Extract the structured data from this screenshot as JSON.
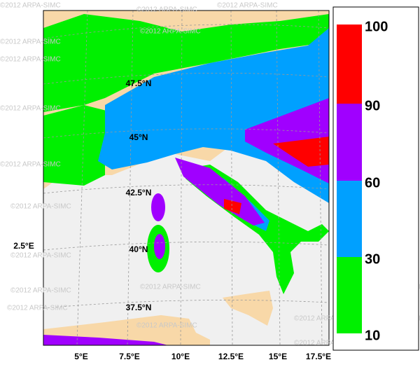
{
  "map": {
    "watermark": "©2012 ARPA-SIMC",
    "lat_labels": [
      "47.5°N",
      "45°N",
      "42.5°N",
      "40°N",
      "37.5°N"
    ],
    "lon_labels": [
      "5°E",
      "7.5°E",
      "10°E",
      "12.5°E",
      "15°E",
      "17.5°E"
    ],
    "side_label": "2.5°E"
  },
  "legend": {
    "boundaries": [
      10,
      30,
      60,
      90,
      100
    ],
    "colors": [
      "#00f000",
      "#00a0ff",
      "#a000ff",
      "#ff0000"
    ]
  }
}
